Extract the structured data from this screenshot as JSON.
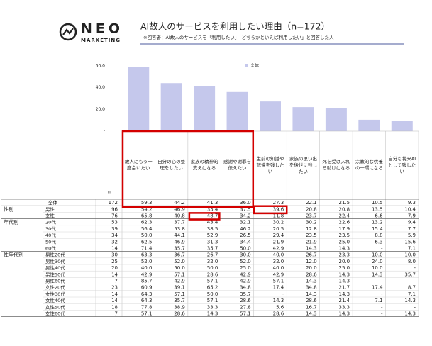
{
  "logo": {
    "name": "NEO",
    "sub": "MARKETING"
  },
  "header": {
    "title": "AI故人のサービスを利用したい理由（n=172）",
    "note": "※回答者：AI故人のサービスを「利用したい」「どちらかといえば利用したい」と回答した人"
  },
  "chart_data": {
    "type": "bar",
    "series": [
      {
        "name": "全体",
        "color": "#c5c8ec",
        "values": [
          59.3,
          44.2,
          41.3,
          36.0,
          27.3,
          22.1,
          21.5,
          10.5,
          9.3
        ]
      }
    ],
    "ylim": [
      0,
      60
    ],
    "yticks": [
      {
        "value": 0,
        "label": "-"
      },
      {
        "value": 20,
        "label": "20.0"
      },
      {
        "value": 40,
        "label": "40.0"
      },
      {
        "value": 60,
        "label": "60.0"
      }
    ],
    "legend": "top-right"
  },
  "table": {
    "columns": [
      "故人にもう一度会いたい",
      "自分の心の整理をしたい",
      "家族の精神的支えになる",
      "感謝や謝罪を伝えたい",
      "生前の知識や記憶を残したい",
      "家族の思い出を後世に残したい",
      "死を受け入れる助けになる",
      "宗教的な供養の一環になる",
      "自分も将来AIとして残したい"
    ],
    "n_header": "n",
    "rows": [
      {
        "label": "全体",
        "n": 172,
        "cells": [
          "59.3",
          "44.2",
          "41.3",
          "36.0",
          "27.3",
          "22.1",
          "21.5",
          "10.5",
          "9.3"
        ]
      },
      {
        "group": "性別",
        "label": "男性",
        "n": 96,
        "cells": [
          "54.2",
          "46.9",
          "35.4",
          "37.5",
          "39.6",
          "20.8",
          "20.8",
          "13.5",
          "10.4"
        ]
      },
      {
        "label": "女性",
        "n": 76,
        "cells": [
          "65.8",
          "40.8",
          "48.7",
          "34.2",
          "11.8",
          "23.7",
          "22.4",
          "6.6",
          "7.9"
        ]
      },
      {
        "group": "年代別",
        "label": "20代",
        "n": 53,
        "cells": [
          "62.3",
          "37.7",
          "43.4",
          "32.1",
          "30.2",
          "30.2",
          "22.6",
          "13.2",
          "9.4"
        ]
      },
      {
        "label": "30代",
        "n": 39,
        "cells": [
          "56.4",
          "53.8",
          "38.5",
          "46.2",
          "20.5",
          "12.8",
          "17.9",
          "15.4",
          "7.7"
        ]
      },
      {
        "label": "40代",
        "n": 34,
        "cells": [
          "50.0",
          "44.1",
          "52.9",
          "26.5",
          "29.4",
          "23.5",
          "23.5",
          "8.8",
          "5.9"
        ]
      },
      {
        "label": "50代",
        "n": 32,
        "cells": [
          "62.5",
          "46.9",
          "31.3",
          "34.4",
          "21.9",
          "21.9",
          "25.0",
          "6.3",
          "15.6"
        ]
      },
      {
        "label": "60代",
        "n": 14,
        "cells": [
          "71.4",
          "35.7",
          "35.7",
          "50.0",
          "42.9",
          "14.3",
          "14.3",
          "-",
          "7.1"
        ]
      },
      {
        "group": "性年代別",
        "label": "男性20代",
        "n": 30,
        "cells": [
          "63.3",
          "36.7",
          "26.7",
          "30.0",
          "40.0",
          "26.7",
          "23.3",
          "10.0",
          "10.0"
        ]
      },
      {
        "label": "男性30代",
        "n": 25,
        "cells": [
          "52.0",
          "52.0",
          "32.0",
          "52.0",
          "32.0",
          "12.0",
          "20.0",
          "24.0",
          "8.0"
        ]
      },
      {
        "label": "男性40代",
        "n": 20,
        "cells": [
          "40.0",
          "50.0",
          "50.0",
          "25.0",
          "40.0",
          "20.0",
          "25.0",
          "10.0",
          "-"
        ]
      },
      {
        "label": "男性50代",
        "n": 14,
        "cells": [
          "42.9",
          "57.1",
          "28.6",
          "42.9",
          "42.9",
          "28.6",
          "14.3",
          "14.3",
          "35.7"
        ]
      },
      {
        "label": "男性60代",
        "n": 7,
        "cells": [
          "85.7",
          "42.9",
          "57.1",
          "42.9",
          "57.1",
          "14.3",
          "14.3",
          "-",
          "-"
        ]
      },
      {
        "label": "女性20代",
        "n": 23,
        "cells": [
          "60.9",
          "39.1",
          "65.2",
          "34.8",
          "17.4",
          "34.8",
          "21.7",
          "17.4",
          "8.7"
        ]
      },
      {
        "label": "女性30代",
        "n": 14,
        "cells": [
          "64.3",
          "57.1",
          "50.0",
          "35.7",
          "-",
          "14.3",
          "14.3",
          "-",
          "7.1"
        ]
      },
      {
        "label": "女性40代",
        "n": 14,
        "cells": [
          "64.3",
          "35.7",
          "57.1",
          "28.6",
          "14.3",
          "28.6",
          "21.4",
          "7.1",
          "14.3"
        ]
      },
      {
        "label": "女性50代",
        "n": 18,
        "cells": [
          "77.8",
          "38.9",
          "33.3",
          "27.8",
          "5.6",
          "16.7",
          "33.3",
          "-",
          "-"
        ]
      },
      {
        "label": "女性60代",
        "n": 7,
        "cells": [
          "57.1",
          "28.6",
          "14.3",
          "57.1",
          "28.6",
          "14.3",
          "14.3",
          "-",
          "14.3"
        ]
      }
    ]
  }
}
